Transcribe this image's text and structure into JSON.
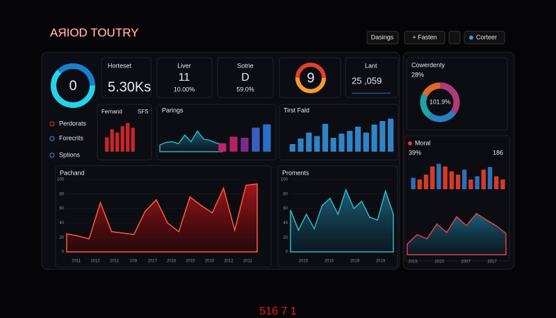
{
  "header": {
    "title": "AЯIOD TOUTRY",
    "buttons": [
      "Dasings",
      "+ Fasten",
      "Corteer"
    ]
  },
  "rings": [
    "0",
    "9"
  ],
  "kpis": [
    {
      "label": "Horteset",
      "value": "5.30Ks"
    },
    {
      "label": "Liver",
      "value": "11",
      "sub": "10.00%"
    },
    {
      "label": "Sotrie",
      "value": "D",
      "sub": "59.0%"
    },
    {
      "label": "Lant",
      "value": "25 ,059"
    }
  ],
  "sidebar": [
    "Perdorats",
    "Forecrits",
    "Sptions"
  ],
  "charts": {
    "fernand": {
      "title": "Fernand",
      "tag": "SFS",
      "values": [
        45,
        70,
        60,
        80,
        90,
        75
      ],
      "color": "#c9262a",
      "ylim": [
        0,
        100
      ]
    },
    "parings": {
      "title": "Parings",
      "line": [
        20,
        28,
        30,
        24,
        50,
        30,
        62,
        38,
        34,
        26,
        22
      ],
      "bars": [
        25,
        45,
        42,
        72,
        82
      ],
      "colors": [
        "#c3246b",
        "#b81f66",
        "#7a2a8f",
        "#3a5fc2",
        "#2a6fc9"
      ],
      "ylim": [
        0,
        100
      ]
    },
    "tirst": {
      "title": "Tirst Fald",
      "values": [
        22,
        38,
        55,
        45,
        80,
        40,
        52,
        60,
        72,
        55,
        78,
        88,
        95
      ],
      "color": "#2f84c8",
      "ylim": [
        0,
        100
      ]
    },
    "cowerdenty": {
      "title": "Cowerdenty",
      "value": "28%",
      "center": "101.9%",
      "values": [
        35,
        25,
        22,
        18
      ],
      "colors": [
        "#b13a7a",
        "#2a7fc0",
        "#1fa2a8",
        "#e0662a"
      ]
    },
    "moral": {
      "title": "Moral",
      "left": "39%",
      "right": "186",
      "bars": [
        35,
        30,
        45,
        70,
        78,
        70,
        55,
        45,
        60,
        30,
        40,
        60,
        68,
        40,
        30
      ],
      "line": [
        20,
        38,
        30,
        58,
        42,
        72,
        55,
        78,
        66,
        55,
        40
      ],
      "ylim": [
        0,
        100
      ],
      "xlabels": [
        "2015",
        "2015",
        "2007",
        "2017"
      ]
    },
    "pachand": {
      "title": "Pachand",
      "values": [
        25,
        22,
        18,
        68,
        28,
        26,
        24,
        56,
        72,
        40,
        28,
        76,
        64,
        54,
        88,
        30,
        92,
        94
      ],
      "ylim": [
        0,
        100
      ],
      "yticks": [
        0,
        20,
        40,
        60,
        80,
        100
      ],
      "xlabels": [
        "2011",
        "2012",
        "2011",
        "109",
        "2017",
        "2015",
        "2015",
        "2015",
        "2012",
        "2011"
      ]
    },
    "proments": {
      "title": "Proments",
      "values": [
        58,
        30,
        52,
        32,
        64,
        74,
        52,
        86,
        60,
        70,
        48,
        44,
        84,
        52
      ],
      "ylim": [
        0,
        100
      ],
      "yticks": [
        0,
        20,
        40,
        60,
        80,
        100
      ],
      "xlabels": [
        "2015",
        "2015",
        "2019",
        "2019"
      ]
    }
  },
  "footer": "516 7 1"
}
